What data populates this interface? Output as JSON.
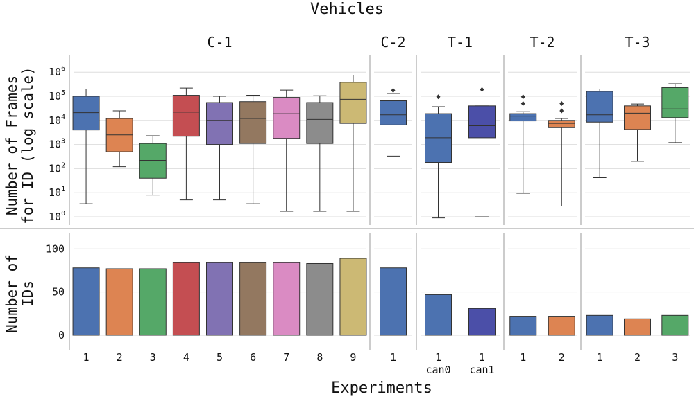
{
  "figure": {
    "title": "Vehicles",
    "xlabel": "Experiments"
  },
  "panels": [
    {
      "label": "C-1",
      "ticks": [
        "1",
        "2",
        "3",
        "4",
        "5",
        "6",
        "7",
        "8",
        "9"
      ]
    },
    {
      "label": "C-2",
      "ticks": [
        "1"
      ]
    },
    {
      "label": "T-1",
      "ticks": [
        "1\ncan0",
        "1\ncan1"
      ]
    },
    {
      "label": "T-2",
      "ticks": [
        "1",
        "2"
      ]
    },
    {
      "label": "T-3",
      "ticks": [
        "1",
        "2",
        "3"
      ]
    }
  ],
  "colors": {
    "blue": "#4c72b0",
    "orange": "#dd8452",
    "green": "#55a868",
    "red": "#c44e52",
    "purple": "#8172b3",
    "brown": "#937860",
    "pink": "#da8bc3",
    "gray": "#8c8c8c",
    "olive": "#ccb974",
    "indigo": "#4b4fa8"
  },
  "chart_data": [
    {
      "type": "box",
      "ylabel": "Number of Frames\nfor ID (log scale)",
      "yscale": "log",
      "ylim": [
        1,
        1000000
      ],
      "yticks": [
        "10^0",
        "10^1",
        "10^2",
        "10^3",
        "10^4",
        "10^5",
        "10^6"
      ],
      "grid": true,
      "panels": [
        {
          "panel": "C-1",
          "boxes": [
            {
              "x": "1",
              "color": "blue",
              "whislo": 3.5,
              "q1": 4000,
              "med": 21000,
              "q3": 100000,
              "whishi": 200000,
              "fliers": []
            },
            {
              "x": "2",
              "color": "orange",
              "whislo": 120,
              "q1": 500,
              "med": 2500,
              "q3": 12000,
              "whishi": 25000,
              "fliers": []
            },
            {
              "x": "3",
              "color": "green",
              "whislo": 8,
              "q1": 40,
              "med": 220,
              "q3": 1100,
              "whishi": 2300,
              "fliers": []
            },
            {
              "x": "4",
              "color": "red",
              "whislo": 5,
              "q1": 2200,
              "med": 22000,
              "q3": 110000,
              "whishi": 220000,
              "fliers": []
            },
            {
              "x": "5",
              "color": "purple",
              "whislo": 5,
              "q1": 1000,
              "med": 10000,
              "q3": 55000,
              "whishi": 100000,
              "fliers": []
            },
            {
              "x": "6",
              "color": "brown",
              "whislo": 3.5,
              "q1": 1100,
              "med": 12000,
              "q3": 60000,
              "whishi": 110000,
              "fliers": []
            },
            {
              "x": "7",
              "color": "pink",
              "whislo": 1.7,
              "q1": 1800,
              "med": 19000,
              "q3": 90000,
              "whishi": 180000,
              "fliers": []
            },
            {
              "x": "8",
              "color": "gray",
              "whislo": 1.7,
              "q1": 1100,
              "med": 11000,
              "q3": 55000,
              "whishi": 105000,
              "fliers": []
            },
            {
              "x": "9",
              "color": "olive",
              "whislo": 1.7,
              "q1": 7500,
              "med": 75000,
              "q3": 380000,
              "whishi": 750000,
              "fliers": []
            }
          ]
        },
        {
          "panel": "C-2",
          "boxes": [
            {
              "x": "1",
              "color": "blue",
              "whislo": 330,
              "q1": 6500,
              "med": 17000,
              "q3": 65000,
              "whishi": 130000,
              "fliers": [
                175000
              ]
            }
          ]
        },
        {
          "panel": "T-1",
          "boxes": [
            {
              "x": "1 can0",
              "color": "blue",
              "whislo": 0.9,
              "q1": 180,
              "med": 1900,
              "q3": 19000,
              "whishi": 37000,
              "fliers": [
                95000
              ]
            },
            {
              "x": "1 can1",
              "color": "indigo",
              "whislo": 1,
              "q1": 1900,
              "med": 6000,
              "q3": 40000,
              "whishi": 40000,
              "fliers": [
                190000
              ]
            }
          ]
        },
        {
          "panel": "T-2",
          "boxes": [
            {
              "x": "1",
              "color": "blue",
              "whislo": 9.5,
              "q1": 9500,
              "med": 15000,
              "q3": 19000,
              "whishi": 23000,
              "fliers": [
                50000,
                95000
              ]
            },
            {
              "x": "2",
              "color": "orange",
              "whislo": 2.8,
              "q1": 5000,
              "med": 7500,
              "q3": 10000,
              "whishi": 12000,
              "fliers": [
                25000,
                50000
              ]
            }
          ]
        },
        {
          "panel": "T-3",
          "boxes": [
            {
              "x": "1",
              "color": "blue",
              "whislo": 42,
              "q1": 8500,
              "med": 17000,
              "q3": 160000,
              "whishi": 200000,
              "fliers": []
            },
            {
              "x": "2",
              "color": "orange",
              "whislo": 200,
              "q1": 4200,
              "med": 20000,
              "q3": 40000,
              "whishi": 48000,
              "fliers": []
            },
            {
              "x": "3",
              "color": "green",
              "whislo": 1200,
              "q1": 13000,
              "med": 30000,
              "q3": 230000,
              "whishi": 330000,
              "fliers": []
            }
          ]
        }
      ]
    },
    {
      "type": "bar",
      "ylabel": "Number of\nIDs",
      "ylim": [
        0,
        120
      ],
      "yticks": [
        0,
        50,
        100
      ],
      "grid": true,
      "panels": [
        {
          "panel": "C-1",
          "bars": [
            {
              "x": "1",
              "value": 78,
              "color": "blue"
            },
            {
              "x": "2",
              "value": 77,
              "color": "orange"
            },
            {
              "x": "3",
              "value": 77,
              "color": "green"
            },
            {
              "x": "4",
              "value": 84,
              "color": "red"
            },
            {
              "x": "5",
              "value": 84,
              "color": "purple"
            },
            {
              "x": "6",
              "value": 84,
              "color": "brown"
            },
            {
              "x": "7",
              "value": 84,
              "color": "pink"
            },
            {
              "x": "8",
              "value": 83,
              "color": "gray"
            },
            {
              "x": "9",
              "value": 89,
              "color": "olive"
            }
          ]
        },
        {
          "panel": "C-2",
          "bars": [
            {
              "x": "1",
              "value": 78,
              "color": "blue"
            }
          ]
        },
        {
          "panel": "T-1",
          "bars": [
            {
              "x": "1 can0",
              "value": 47,
              "color": "blue"
            },
            {
              "x": "1 can1",
              "value": 31,
              "color": "indigo"
            }
          ]
        },
        {
          "panel": "T-2",
          "bars": [
            {
              "x": "1",
              "value": 22,
              "color": "blue"
            },
            {
              "x": "2",
              "value": 22,
              "color": "orange"
            }
          ]
        },
        {
          "panel": "T-3",
          "bars": [
            {
              "x": "1",
              "value": 23,
              "color": "blue"
            },
            {
              "x": "2",
              "value": 19,
              "color": "orange"
            },
            {
              "x": "3",
              "value": 23,
              "color": "green"
            }
          ]
        }
      ]
    }
  ]
}
